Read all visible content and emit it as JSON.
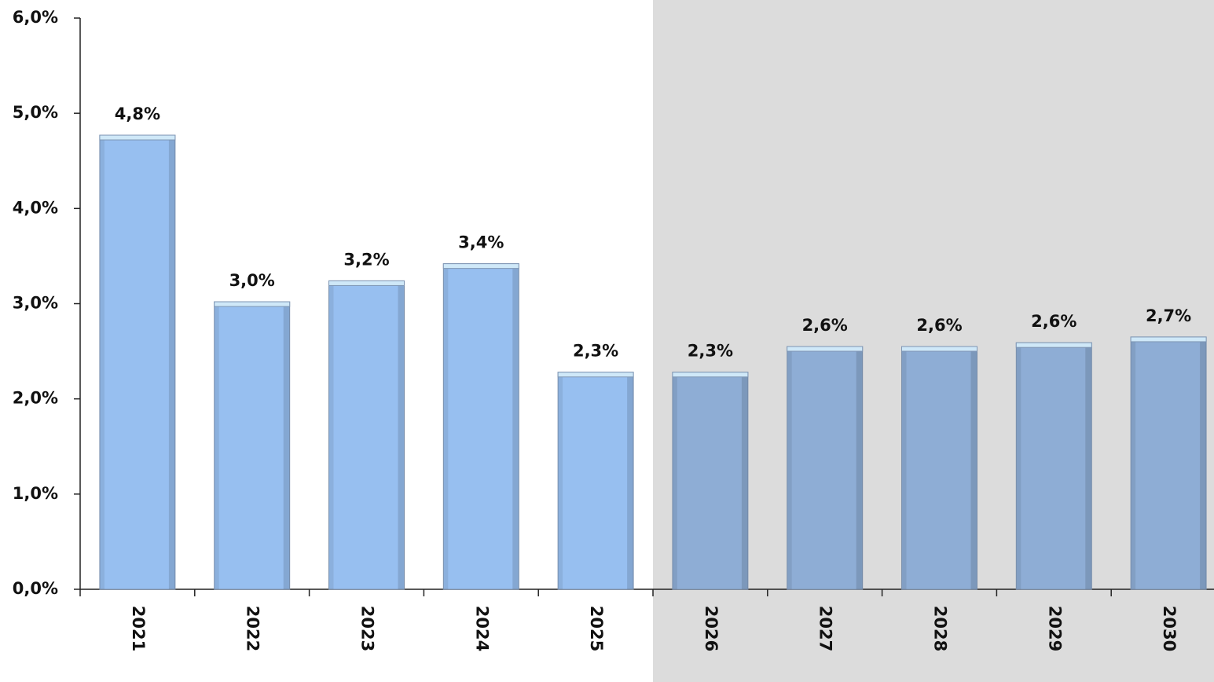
{
  "chart_data": {
    "type": "bar",
    "categories": [
      "2021",
      "2022",
      "2023",
      "2024",
      "2025",
      "2026",
      "2027",
      "2028",
      "2029",
      "2030"
    ],
    "values": [
      4.77,
      3.02,
      3.24,
      3.42,
      2.28,
      2.28,
      2.55,
      2.55,
      2.59,
      2.65
    ],
    "value_labels": [
      "4,8%",
      "3,0%",
      "3,2%",
      "3,4%",
      "2,3%",
      "2,3%",
      "2,6%",
      "2,6%",
      "2,6%",
      "2,7%"
    ],
    "colors": [
      "#97bff0",
      "#97bff0",
      "#97bff0",
      "#97bff0",
      "#97bff0",
      "#8eadd5",
      "#8eadd5",
      "#8eadd5",
      "#8eadd5",
      "#8eadd5"
    ],
    "band_colors": [
      "#ffffff",
      "#ffffff",
      "#ffffff",
      "#ffffff",
      "#ffffff",
      "#dcdcdc",
      "#dcdcdc",
      "#dcdcdc",
      "#dcdcdc",
      "#dcdcdc"
    ],
    "ylim": [
      0,
      6
    ],
    "yticks": [
      {
        "value": 0,
        "label": "0,0%"
      },
      {
        "value": 1,
        "label": "1,0%"
      },
      {
        "value": 2,
        "label": "2,0%"
      },
      {
        "value": 3,
        "label": "3,0%"
      },
      {
        "value": 4,
        "label": "4,0%"
      },
      {
        "value": 5,
        "label": "5,0%"
      },
      {
        "value": 6,
        "label": "6,0%"
      }
    ],
    "grid": false
  }
}
